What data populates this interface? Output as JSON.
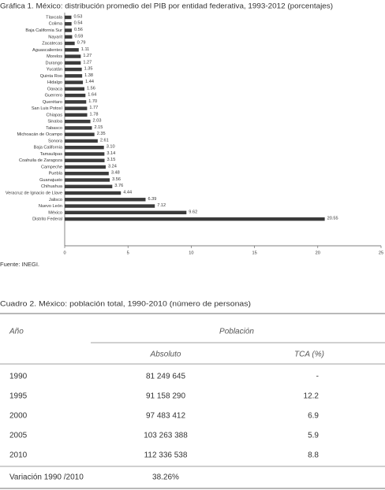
{
  "chart_data": {
    "type": "bar",
    "orientation": "horizontal",
    "title": "Gráfica 1. México: distribución promedio del PIB por entidad federativa, 1993-2012 (porcentajes)",
    "categories": [
      "Tlaxcala",
      "Colima",
      "Baja California Sur",
      "Nayarit",
      "Zacatecas",
      "Aguascalientes",
      "Morelos",
      "Durango",
      "Yucatán",
      "Quinta Roo",
      "Hidalgo",
      "Oaxaca",
      "Guerrero",
      "Querétaro",
      "San Luis Potosí",
      "Chiapas",
      "Sinaloa",
      "Tabasco",
      "Michoacán de Ocampo",
      "Sonora",
      "Baja California",
      "Tamaulipas",
      "Coahuila de Zaragoza",
      "Campeche",
      "Puebla",
      "Guanajuato",
      "Chihuahua",
      "Veracruz de Ignacio de Llave",
      "Jalisco",
      "Nuevo León",
      "México",
      "Distrito Federal"
    ],
    "values": [
      0.53,
      0.54,
      0.56,
      0.59,
      0.79,
      1.11,
      1.27,
      1.27,
      1.35,
      1.38,
      1.44,
      1.56,
      1.64,
      1.7,
      1.77,
      1.78,
      2.03,
      2.15,
      2.35,
      2.61,
      3.1,
      3.14,
      3.15,
      3.24,
      3.48,
      3.56,
      3.76,
      4.44,
      6.39,
      7.12,
      9.62,
      20.55
    ],
    "value_labels": [
      "0.53",
      "0.54",
      "0.56",
      "0.59",
      "0.79",
      "1.11",
      "1.27",
      "1.27",
      "1.35",
      "1.38",
      "1.44",
      "1.56",
      "1.64",
      "1.70",
      "1.77",
      "1.78",
      "2.03",
      "2.15",
      "2.35",
      "2.61",
      "3.10",
      "3.14",
      "3.15",
      "3.24",
      "3.48",
      "3.56",
      "3.76",
      "4.44",
      "6.39",
      "7.12",
      "9.62",
      "20.55"
    ],
    "color": "#3b3b3b",
    "xlim": [
      0,
      25
    ],
    "xticks": [
      0,
      5,
      10,
      15,
      20,
      25
    ]
  },
  "source": "Fuente: INEGI.",
  "table": {
    "title": "Cuadro 2. México: población total, 1990-2010 (número de personas)",
    "header": {
      "year": "Año",
      "group": "Población",
      "absolute": "Absoluto",
      "rate": "TCA (%)"
    },
    "rows": [
      [
        "1990",
        "81 249 645",
        "-"
      ],
      [
        "1995",
        "91 158 290",
        "12.2"
      ],
      [
        "2000",
        "97 483 412",
        "6.9"
      ],
      [
        "2005",
        "103 263 388",
        "5.9"
      ],
      [
        "2010",
        "112 336 538",
        "8.8"
      ]
    ],
    "footer": [
      "Variación 1990 /2010",
      "38.26%"
    ]
  }
}
